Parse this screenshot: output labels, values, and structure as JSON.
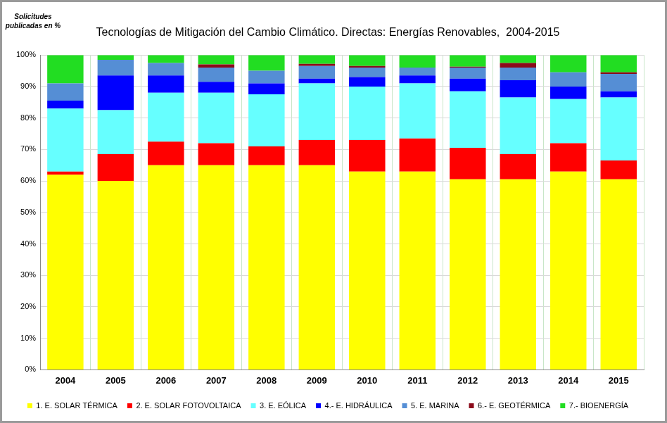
{
  "chart_data": {
    "type": "bar",
    "title": "Tecnologías de Mitigación del Cambio Climático. Directas: Energías Renovables,  2004-2015",
    "y_label": "Solicitudes publicadas en %",
    "categories": [
      "2004",
      "2005",
      "2006",
      "2007",
      "2008",
      "2009",
      "2010",
      "2011",
      "2012",
      "2013",
      "2014",
      "2015"
    ],
    "stacked": true,
    "grid": true,
    "legend": "bottom",
    "ylim": [
      0,
      100
    ],
    "yticks": [
      {
        "value": 0,
        "label": "0%"
      },
      {
        "value": 10,
        "label": "10%"
      },
      {
        "value": 20,
        "label": "20%"
      },
      {
        "value": 30,
        "label": "30%"
      },
      {
        "value": 40,
        "label": "40%"
      },
      {
        "value": 50,
        "label": "50%"
      },
      {
        "value": 60,
        "label": "60%"
      },
      {
        "value": 70,
        "label": "70%"
      },
      {
        "value": 80,
        "label": "80%"
      },
      {
        "value": 90,
        "label": "90%"
      },
      {
        "value": 100,
        "label": "100%"
      }
    ],
    "series": [
      {
        "name": "1. E. SOLAR TÉRMICA",
        "color": "#ffff00",
        "values": [
          62,
          60,
          65,
          65,
          65,
          65,
          63,
          63,
          60.5,
          60.5,
          63,
          60.5
        ]
      },
      {
        "name": "2. E. SOLAR FOTOVOLTAICA",
        "color": "#ff0000",
        "values": [
          1,
          8.5,
          7.5,
          7,
          6,
          8,
          10,
          10.5,
          10,
          8,
          9,
          6
        ]
      },
      {
        "name": "3. E. EÓLICA",
        "color": "#66ffff",
        "values": [
          20,
          14,
          15.5,
          16,
          16.5,
          18,
          17,
          17.5,
          18,
          18,
          14,
          20
        ]
      },
      {
        "name": "4.- E. HIDRÁULICA",
        "color": "#0000ff",
        "values": [
          2.5,
          11,
          5.5,
          3.5,
          3.5,
          1.5,
          3,
          2.5,
          4,
          5.5,
          4,
          2
        ]
      },
      {
        "name": "5. E. MARINA",
        "color": "#558ed5",
        "values": [
          5.5,
          5,
          4,
          4.5,
          4,
          4,
          3,
          2.5,
          3.5,
          4,
          4.5,
          5.5
        ]
      },
      {
        "name": "6.- E. GEOTÉRMICA",
        "color": "#8b0a1a",
        "values": [
          0,
          0,
          0,
          1,
          0,
          0.7,
          0.5,
          0,
          0.3,
          1.5,
          0,
          0.5
        ]
      },
      {
        "name": "7.- BIOENERGÍA",
        "color": "#22dd22",
        "values": [
          9,
          1.5,
          2.5,
          3,
          5,
          2.8,
          3.5,
          4,
          3.7,
          2.5,
          5.5,
          5.5
        ]
      }
    ]
  }
}
